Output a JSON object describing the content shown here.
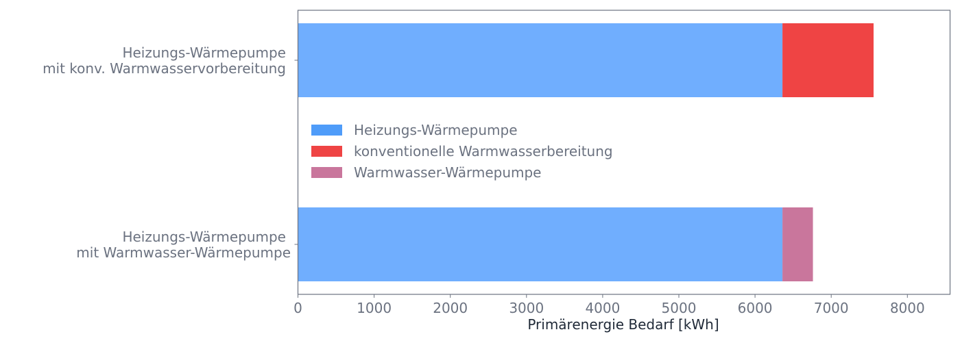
{
  "chart_data": {
    "type": "bar",
    "orientation": "horizontal",
    "stacked": true,
    "categories": [
      [
        "Heizungs-Wärmepumpe",
        "mit konv. Warmwasservorbereitung"
      ],
      [
        "Heizungs-Wärmepumpe",
        "mit Warmwasser-Wärmepumpe"
      ]
    ],
    "series": [
      {
        "name": "Heizungs-Wärmepumpe",
        "values": [
          6360,
          6360
        ],
        "color": "#70aefe",
        "legend_color": "#4f9cf9"
      },
      {
        "name": "konventionelle Warmwasserbereitung",
        "values": [
          1196,
          0
        ],
        "color": "#ef4444",
        "legend_color": "#ef4444"
      },
      {
        "name": "Warmwasser-Wärmepumpe",
        "values": [
          0,
          400
        ],
        "color": "#c9769c",
        "legend_color": "#c9769c"
      }
    ],
    "xlabel": "Primärenergie Bedarf [kWh]",
    "ylabel": "",
    "xlim": [
      0,
      8560
    ],
    "xticks": [
      "0",
      "1000",
      "2000",
      "3000",
      "4000",
      "5000",
      "6000",
      "7000",
      "8000"
    ],
    "grid": false,
    "legend_position": "center-left"
  }
}
